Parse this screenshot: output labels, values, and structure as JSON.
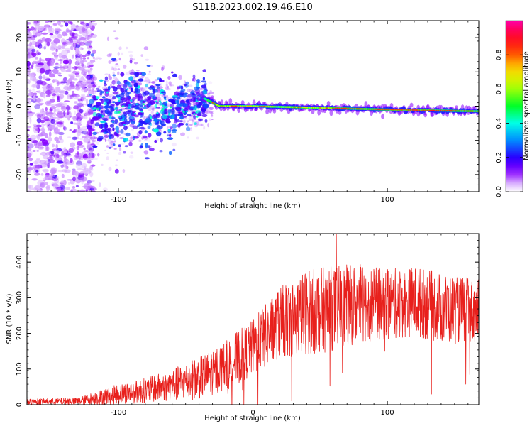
{
  "figure_title": "S118.2023.002.19.46.E10",
  "colors": {
    "snr_line": "#e8201c",
    "axis": "#000000",
    "background": "#ffffff"
  },
  "chart_data": [
    {
      "type": "heatmap",
      "name": "spectrogram",
      "xlabel": "Height of straight line (km)",
      "ylabel": "Frequency (Hz)",
      "xlim": [
        -168,
        168
      ],
      "ylim": [
        -25,
        25
      ],
      "xticks": [
        -100,
        0,
        100
      ],
      "xtick_labels": [
        "-100",
        "0",
        "100"
      ],
      "yticks": [
        -20,
        -10,
        0,
        10,
        20
      ],
      "ytick_labels": [
        "-20",
        "-10",
        "0",
        "10",
        "20"
      ],
      "colorbar": {
        "label": "Normalized spectral amplitude",
        "range": [
          0,
          1
        ],
        "ticks": [
          0.0,
          0.2,
          0.4,
          0.6,
          0.8
        ],
        "tick_labels": [
          "0.0",
          "0.2",
          "0.4",
          "0.6",
          "0.8"
        ],
        "colormap": "gist_rainbow_r"
      },
      "features": {
        "noise_region_x": [
          -168,
          -120
        ],
        "turbulent_region_x": [
          -120,
          -35
        ],
        "signal_line": [
          [
            -35,
            2
          ],
          [
            -25,
            0
          ],
          [
            0,
            0
          ],
          [
            50,
            -0.5
          ],
          [
            100,
            -1
          ],
          [
            168,
            -1.5
          ]
        ],
        "peak_amplitude": 0.95
      }
    },
    {
      "type": "line",
      "name": "snr",
      "xlabel": "Height of straight line (km)",
      "ylabel": "SNR (10 * v/v)",
      "xlim": [
        -168,
        168
      ],
      "ylim": [
        0,
        480
      ],
      "xticks": [
        -100,
        0,
        100
      ],
      "xtick_labels": [
        "-100",
        "0",
        "100"
      ],
      "yticks": [
        0,
        100,
        200,
        300,
        400
      ],
      "ytick_labels": [
        "0",
        "100",
        "200",
        "300",
        "400"
      ],
      "series": [
        {
          "name": "SNR",
          "envelope_x": [
            -168,
            -130,
            -115,
            -100,
            -80,
            -60,
            -40,
            -20,
            0,
            20,
            40,
            60,
            80,
            100,
            120,
            140,
            168
          ],
          "envelope_mean": [
            8,
            10,
            20,
            30,
            40,
            55,
            75,
            110,
            160,
            230,
            260,
            270,
            285,
            280,
            290,
            270,
            260
          ],
          "envelope_spread": [
            8,
            10,
            20,
            28,
            35,
            45,
            60,
            70,
            80,
            100,
            120,
            120,
            110,
            100,
            100,
            100,
            90
          ],
          "max_value": 480,
          "max_x": 62
        }
      ]
    }
  ]
}
